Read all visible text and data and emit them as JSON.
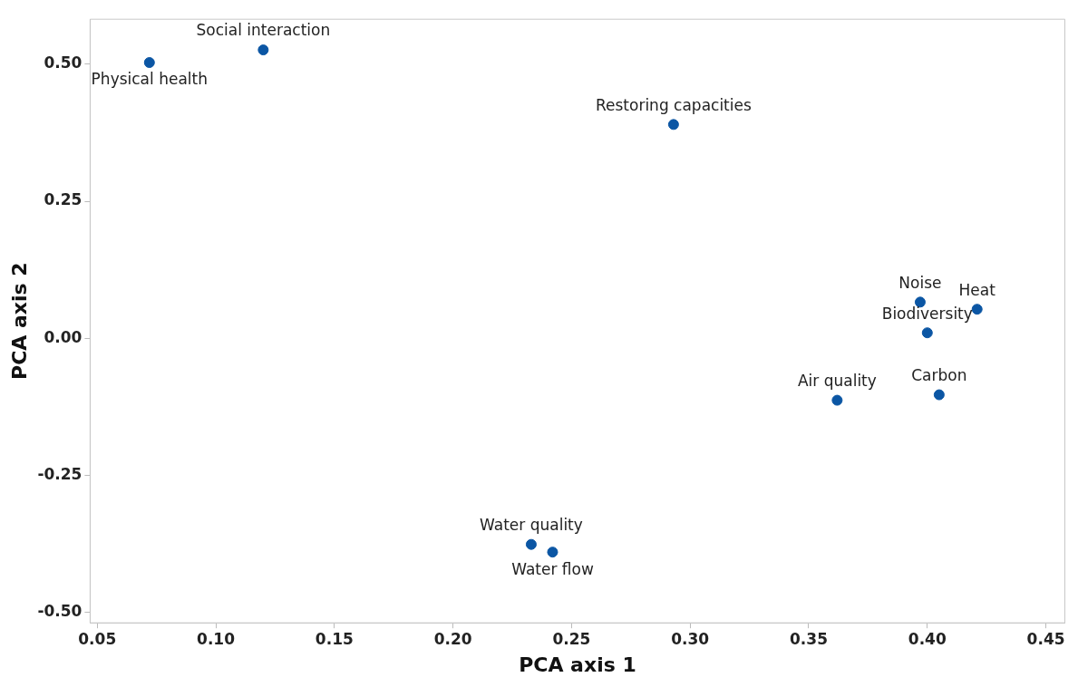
{
  "chart_data": {
    "type": "scatter",
    "xlabel": "PCA axis 1",
    "ylabel": "PCA axis 2",
    "x": [
      0.072,
      0.12,
      0.293,
      0.397,
      0.421,
      0.4,
      0.405,
      0.362,
      0.233,
      0.242
    ],
    "series": [
      {
        "color": "#0b56a4",
        "values": [
          0.503,
          0.526,
          0.39,
          0.066,
          0.053,
          0.01,
          -0.103,
          -0.113,
          -0.376,
          -0.39
        ]
      }
    ],
    "xlim": [
      0.047,
      0.458
    ],
    "ylim": [
      -0.519,
      0.582
    ],
    "xticks": [
      {
        "value": 0.05,
        "label": "0.05"
      },
      {
        "value": 0.1,
        "label": "0.10"
      },
      {
        "value": 0.15,
        "label": "0.15"
      },
      {
        "value": 0.2,
        "label": "0.20"
      },
      {
        "value": 0.25,
        "label": "0.25"
      },
      {
        "value": 0.3,
        "label": "0.30"
      },
      {
        "value": 0.35,
        "label": "0.35"
      },
      {
        "value": 0.4,
        "label": "0.40"
      },
      {
        "value": 0.45,
        "label": "0.45"
      }
    ],
    "yticks": [
      {
        "value": -0.5,
        "label": "-0.50"
      },
      {
        "value": -0.25,
        "label": "-0.25"
      },
      {
        "value": 0,
        "label": "0.00"
      },
      {
        "value": 0.25,
        "label": "0.25"
      },
      {
        "value": 0.5,
        "label": "0.50"
      }
    ],
    "grid": false,
    "legend": false,
    "marker": "circle",
    "annotations": [
      {
        "text": "Social interaction",
        "x": 0.12,
        "y": 0.526
      },
      {
        "text": "Physical health",
        "x": 0.072,
        "y": 0.503
      },
      {
        "text": "Restoring capacities",
        "x": 0.293,
        "y": 0.39
      },
      {
        "text": "Noise",
        "x": 0.397,
        "y": 0.066
      },
      {
        "text": "Heat",
        "x": 0.421,
        "y": 0.053
      },
      {
        "text": "Biodiversity",
        "x": 0.4,
        "y": 0.01
      },
      {
        "text": "Carbon",
        "x": 0.405,
        "y": -0.103
      },
      {
        "text": "Air quality",
        "x": 0.362,
        "y": -0.113
      },
      {
        "text": "Water quality",
        "x": 0.233,
        "y": -0.376
      },
      {
        "text": "Water flow",
        "x": 0.242,
        "y": -0.39
      }
    ]
  }
}
